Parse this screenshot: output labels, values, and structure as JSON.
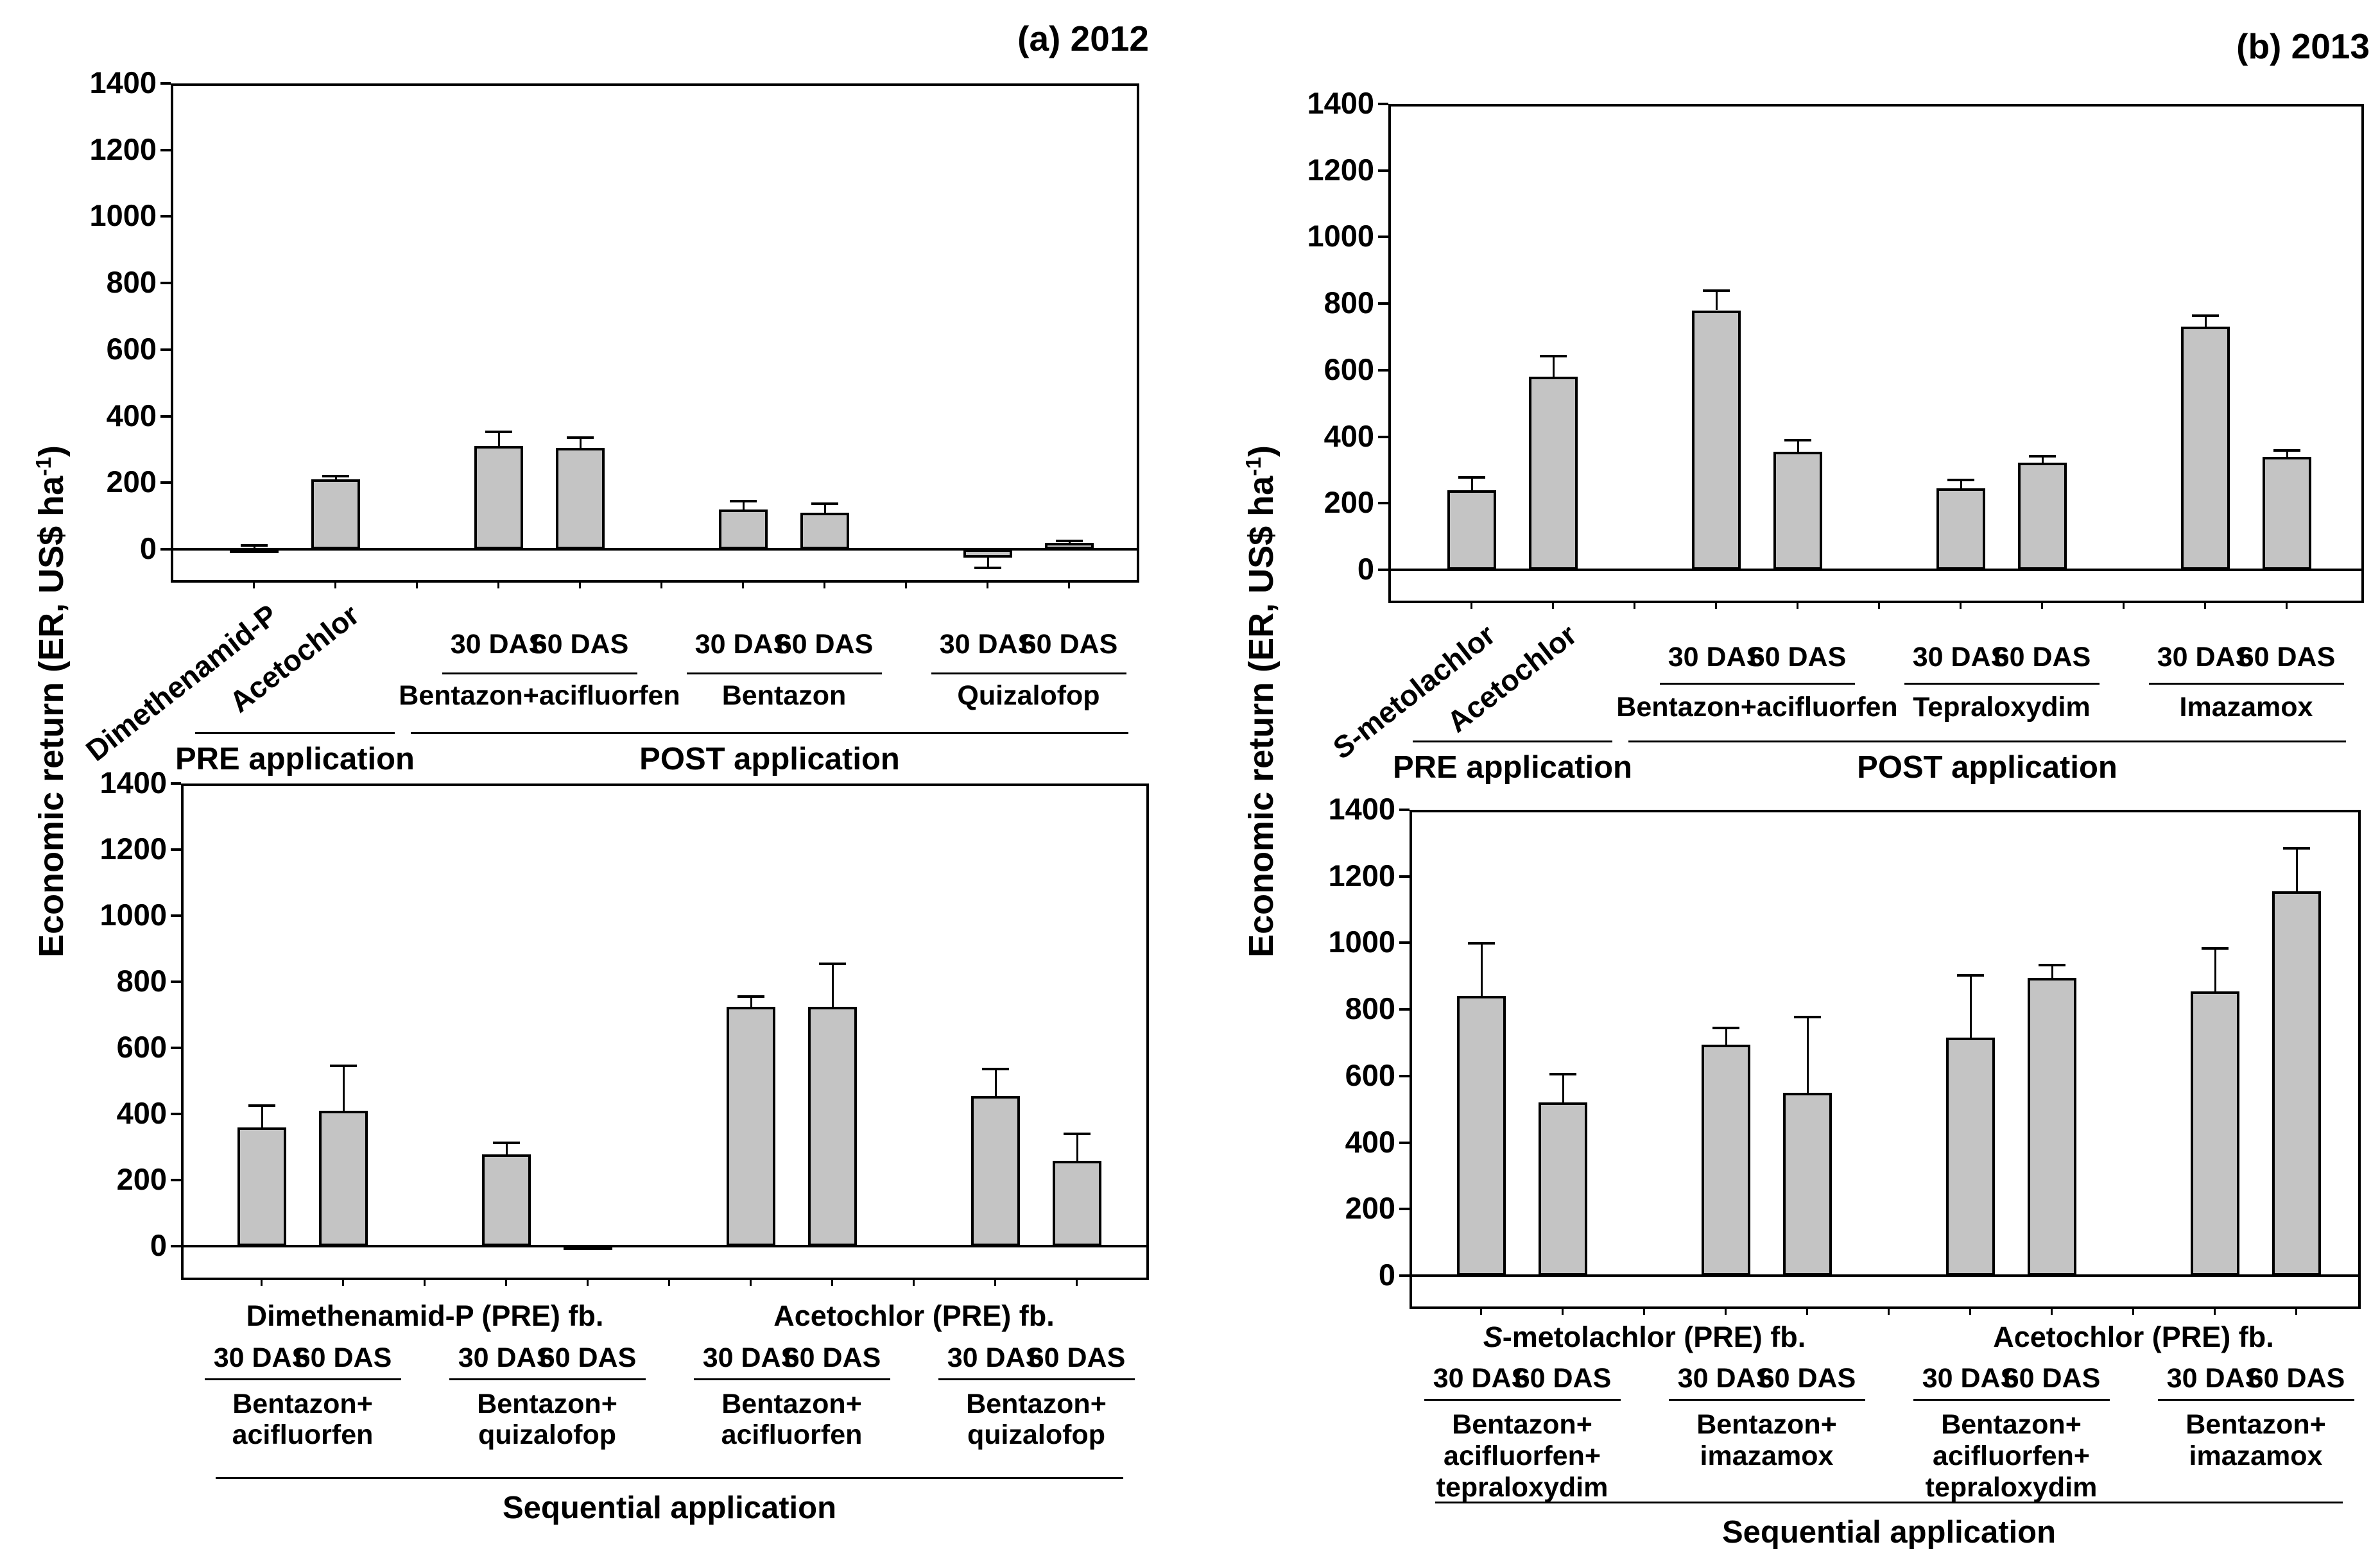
{
  "figure": {
    "y_axis_label": {
      "main": "Economic return (ER, US$ ha",
      "sup": "-1",
      "close": ")"
    },
    "colors": {
      "bar_fill": "#c4c4c4",
      "line": "#000000",
      "background": "#ffffff"
    }
  },
  "chart_data": [
    {
      "id": "pre_post_2012",
      "type": "bar",
      "title": "(a) 2012",
      "ylabel": "Economic return (ER, US$ ha-1)",
      "ylim": [
        -100,
        1400
      ],
      "yticks": [
        0,
        200,
        400,
        600,
        800,
        1000,
        1200,
        1400
      ],
      "grid": false,
      "sections": [
        {
          "label": "PRE application",
          "groups": [
            {
              "label": null,
              "tick_type": "rotated",
              "bars": [
                {
                  "tick": "Dimethenamid-P",
                  "value": 3,
                  "err": 8
                },
                {
                  "tick": "Acetochlor",
                  "value": 210,
                  "err": 10
                }
              ]
            }
          ]
        },
        {
          "label": "POST application",
          "groups": [
            {
              "label": "Bentazon+acifluorfen",
              "tick_type": "horizontal",
              "bars": [
                {
                  "tick": "30 DAS",
                  "value": 310,
                  "err": 42
                },
                {
                  "tick": "60 DAS",
                  "value": 305,
                  "err": 30
                }
              ]
            },
            {
              "label": "Bentazon",
              "tick_type": "horizontal",
              "bars": [
                {
                  "tick": "30 DAS",
                  "value": 120,
                  "err": 25
                },
                {
                  "tick": "60 DAS",
                  "value": 110,
                  "err": 27
                }
              ]
            },
            {
              "label": "Quizalofop",
              "tick_type": "horizontal",
              "bars": [
                {
                  "tick": "30 DAS",
                  "value": -25,
                  "err": 30
                },
                {
                  "tick": "60 DAS",
                  "value": 20,
                  "err": 6
                }
              ]
            }
          ]
        }
      ]
    },
    {
      "id": "pre_post_2013",
      "type": "bar",
      "title": "(b) 2013",
      "ylabel": "Economic return (ER, US$ ha-1)",
      "ylim": [
        -100,
        1400
      ],
      "yticks": [
        0,
        200,
        400,
        600,
        800,
        1000,
        1200,
        1400
      ],
      "grid": false,
      "sections": [
        {
          "label": "PRE application",
          "groups": [
            {
              "label": null,
              "tick_type": "rotated",
              "bars": [
                {
                  "tick": "S-metolachlor",
                  "tick_italic_prefix": true,
                  "value": 240,
                  "err": 38
                },
                {
                  "tick": "Acetochlor",
                  "value": 580,
                  "err": 62
                }
              ]
            }
          ]
        },
        {
          "label": "POST application",
          "groups": [
            {
              "label": "Bentazon+acifluorfen",
              "tick_type": "horizontal",
              "bars": [
                {
                  "tick": "30 DAS",
                  "value": 780,
                  "err": 58
                },
                {
                  "tick": "60 DAS",
                  "value": 355,
                  "err": 35
                }
              ]
            },
            {
              "label": "Tepraloxydim",
              "tick_type": "horizontal",
              "bars": [
                {
                  "tick": "30 DAS",
                  "value": 245,
                  "err": 25
                },
                {
                  "tick": "60 DAS",
                  "value": 322,
                  "err": 20
                }
              ]
            },
            {
              "label": "Imazamox",
              "tick_type": "horizontal",
              "bars": [
                {
                  "tick": "30 DAS",
                  "value": 730,
                  "err": 33
                },
                {
                  "tick": "60 DAS",
                  "value": 340,
                  "err": 18
                }
              ]
            }
          ]
        }
      ]
    },
    {
      "id": "sequential_2012",
      "type": "bar",
      "title": null,
      "ylabel": "Economic return (ER, US$ ha-1)",
      "ylim": [
        -100,
        1400
      ],
      "yticks": [
        0,
        200,
        400,
        600,
        800,
        1000,
        1200,
        1400
      ],
      "grid": false,
      "pre_labels": [
        {
          "label": "Dimethenamid-P (PRE) fb.",
          "group_span": [
            0,
            1
          ]
        },
        {
          "label": "Acetochlor (PRE) fb.",
          "group_span": [
            2,
            3
          ]
        }
      ],
      "groups": [
        {
          "label_lines": [
            "Bentazon+",
            "acifluorfen"
          ],
          "bars": [
            {
              "tick": "30 DAS",
              "value": 360,
              "err": 65
            },
            {
              "tick": "60 DAS",
              "value": 410,
              "err": 135
            }
          ]
        },
        {
          "label_lines": [
            "Bentazon+",
            "quizalofop"
          ],
          "bars": [
            {
              "tick": "30 DAS",
              "value": 278,
              "err": 35
            },
            {
              "tick": "60 DAS",
              "value": 3,
              "err": 0
            }
          ]
        },
        {
          "label_lines": [
            "Bentazon+",
            "acifluorfen"
          ],
          "bars": [
            {
              "tick": "30 DAS",
              "value": 725,
              "err": 30
            },
            {
              "tick": "60 DAS",
              "value": 725,
              "err": 130
            }
          ]
        },
        {
          "label_lines": [
            "Bentazon+",
            "quizalofop"
          ],
          "bars": [
            {
              "tick": "30 DAS",
              "value": 455,
              "err": 80
            },
            {
              "tick": "60 DAS",
              "value": 258,
              "err": 82
            }
          ]
        }
      ],
      "footer": "Sequential application"
    },
    {
      "id": "sequential_2013",
      "type": "bar",
      "title": null,
      "ylabel": "Economic return (ER, US$ ha-1)",
      "ylim": [
        -100,
        1400
      ],
      "yticks": [
        0,
        200,
        400,
        600,
        800,
        1000,
        1200,
        1400
      ],
      "grid": false,
      "pre_labels": [
        {
          "label": "S-metolachlor (PRE) fb.",
          "italic_prefix": true,
          "group_span": [
            0,
            1
          ]
        },
        {
          "label": "Acetochlor (PRE) fb.",
          "group_span": [
            2,
            3
          ]
        }
      ],
      "groups": [
        {
          "label_lines": [
            "Bentazon+",
            "acifluorfen+",
            "tepraloxydim"
          ],
          "bars": [
            {
              "tick": "30 DAS",
              "value": 840,
              "err": 158
            },
            {
              "tick": "60 DAS",
              "value": 520,
              "err": 85
            }
          ]
        },
        {
          "label_lines": [
            "Bentazon+",
            "imazamox"
          ],
          "bars": [
            {
              "tick": "30 DAS",
              "value": 695,
              "err": 50
            },
            {
              "tick": "60 DAS",
              "value": 550,
              "err": 228
            }
          ]
        },
        {
          "label_lines": [
            "Bentazon+",
            "acifluorfen+",
            "tepraloxydim"
          ],
          "bars": [
            {
              "tick": "30 DAS",
              "value": 715,
              "err": 188
            },
            {
              "tick": "60 DAS",
              "value": 895,
              "err": 38
            }
          ]
        },
        {
          "label_lines": [
            "Bentazon+",
            "imazamox"
          ],
          "bars": [
            {
              "tick": "30 DAS",
              "value": 855,
              "err": 128
            },
            {
              "tick": "60 DAS",
              "value": 1155,
              "err": 130
            }
          ]
        }
      ],
      "footer": "Sequential application"
    }
  ]
}
